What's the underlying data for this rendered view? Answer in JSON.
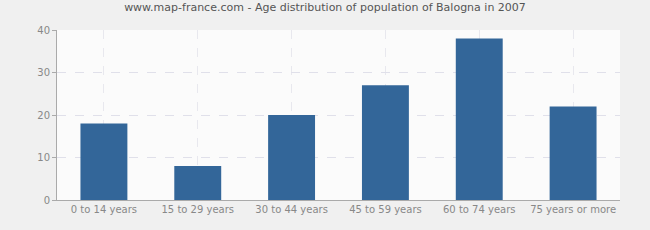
{
  "chart_data": {
    "type": "bar",
    "title": "www.map-france.com - Age distribution of population of Balogna in 2007",
    "categories": [
      "0 to 14 years",
      "15 to 29 years",
      "30 to 44 years",
      "45 to 59 years",
      "60 to 74 years",
      "75 years or more"
    ],
    "values": [
      18,
      8,
      20,
      27,
      38,
      22
    ],
    "color": "#336699",
    "ylim": [
      0,
      40
    ],
    "yticks": [
      0,
      10,
      20,
      30,
      40
    ],
    "grid": true
  }
}
